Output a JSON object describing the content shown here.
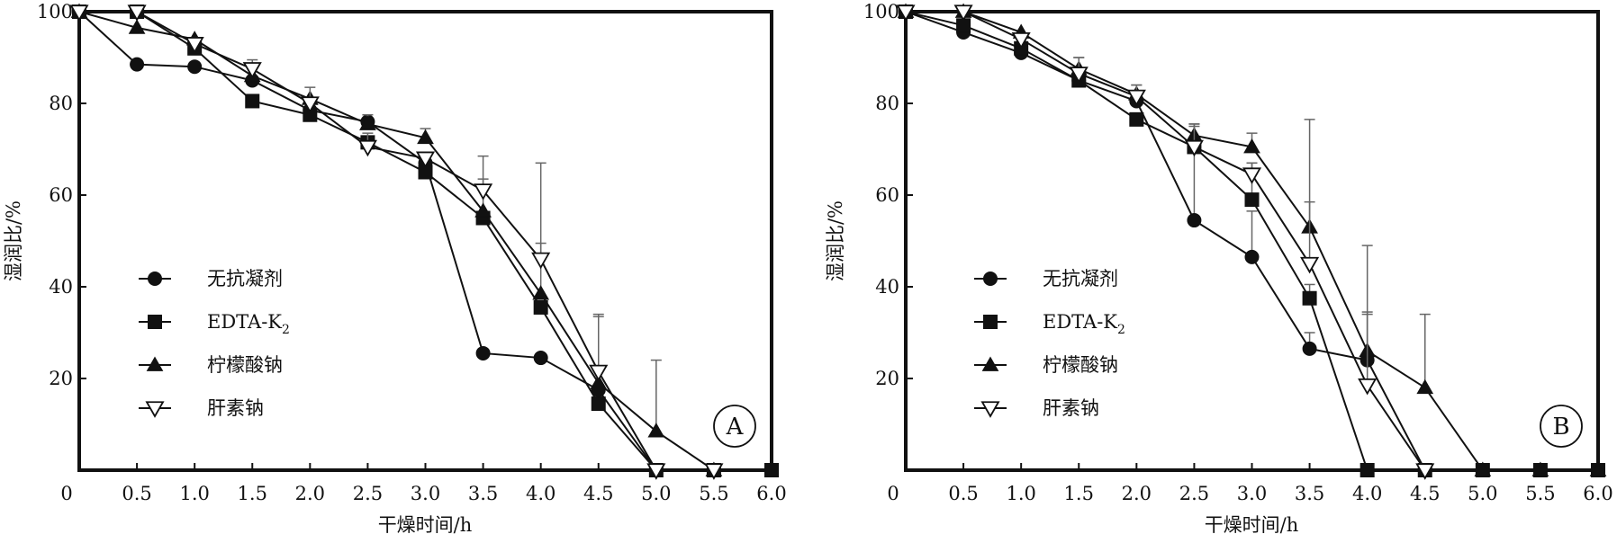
{
  "chart_data": [
    {
      "type": "line",
      "panel": "A",
      "xlabel": "干燥时间/h",
      "ylabel": "湿润比/%",
      "x_ticks": [
        "0",
        "0.5",
        "1.0",
        "1.5",
        "2.0",
        "2.5",
        "3.0",
        "3.5",
        "4.0",
        "4.5",
        "5.0",
        "5.5",
        "6.0"
      ],
      "y_ticks": [
        "100",
        "80",
        "60",
        "40",
        "20"
      ],
      "xlim": [
        0,
        6
      ],
      "ylim": [
        0,
        100
      ],
      "grid": false,
      "legend_position": "left-middle",
      "legend_labels": [
        "无抗凝剂",
        "EDTA-K",
        "柠檬酸钠",
        "肝素钠"
      ],
      "legend_subscripts": [
        "",
        "2",
        "",
        ""
      ],
      "series": [
        {
          "name": "无抗凝剂",
          "marker": "circle",
          "x": [
            0,
            0.5,
            1.0,
            1.5,
            2.0,
            2.5,
            3.0,
            3.5,
            4.0,
            4.5,
            5.0,
            5.5,
            6.0
          ],
          "y": [
            100,
            88.5,
            88,
            85,
            78.5,
            76,
            67,
            25.5,
            24.5,
            17.5,
            0,
            0,
            0
          ],
          "err": [
            0,
            0,
            0,
            0,
            0,
            0,
            0,
            0,
            0,
            0,
            0,
            0,
            0
          ]
        },
        {
          "name": "EDTA-K2",
          "marker": "square",
          "x": [
            0,
            0.5,
            1.0,
            1.5,
            2.0,
            2.5,
            3.0,
            3.5,
            4.0,
            4.5,
            5.0,
            5.5,
            6.0
          ],
          "y": [
            100,
            100,
            92,
            80.5,
            77.5,
            71.5,
            65,
            55,
            35.5,
            14.5,
            0,
            0,
            0
          ],
          "err": [
            0,
            0,
            0,
            0,
            0,
            0,
            0,
            0,
            0,
            0,
            0,
            0,
            0
          ]
        },
        {
          "name": "柠檬酸钠",
          "marker": "triangle-up",
          "x": [
            0,
            0.5,
            1.0,
            1.5,
            2.0,
            2.5,
            3.0,
            3.5,
            4.0,
            4.5,
            5.0,
            5.5
          ],
          "y": [
            100,
            96.5,
            94,
            86,
            81,
            75.5,
            72.5,
            56.5,
            38.5,
            19,
            8.5,
            0
          ],
          "err": [
            0,
            0,
            0,
            0,
            0,
            2,
            2,
            7,
            11,
            15,
            15.5,
            0
          ]
        },
        {
          "name": "肝素钠",
          "marker": "triangle-down-open",
          "x": [
            0,
            0.5,
            1.0,
            1.5,
            2.0,
            2.5,
            3.0,
            3.5,
            4.0,
            4.5,
            5.0,
            5.5
          ],
          "y": [
            100,
            100,
            93,
            87.5,
            80,
            70.5,
            68,
            61,
            46,
            21.5,
            0,
            0
          ],
          "err": [
            0,
            0,
            0,
            2,
            3.5,
            3,
            0,
            7.5,
            21,
            12,
            0,
            0
          ]
        }
      ]
    },
    {
      "type": "line",
      "panel": "B",
      "xlabel": "干燥时间/h",
      "ylabel": "湿润比/%",
      "x_ticks": [
        "0",
        "0.5",
        "1.0",
        "1.5",
        "2.0",
        "2.5",
        "3.0",
        "3.5",
        "4.0",
        "4.5",
        "5.0",
        "5.5",
        "6.0"
      ],
      "y_ticks": [
        "100",
        "80",
        "60",
        "40",
        "20"
      ],
      "xlim": [
        0,
        6
      ],
      "ylim": [
        0,
        100
      ],
      "grid": false,
      "legend_position": "left-middle",
      "legend_labels": [
        "无抗凝剂",
        "EDTA-K",
        "柠檬酸钠",
        "肝素钠"
      ],
      "legend_subscripts": [
        "",
        "2",
        "",
        ""
      ],
      "series": [
        {
          "name": "无抗凝剂",
          "marker": "circle",
          "x": [
            0,
            0.5,
            1.0,
            1.5,
            2.0,
            2.5,
            3.0,
            3.5,
            4.0,
            4.5,
            5.0,
            5.5,
            6.0
          ],
          "y": [
            100,
            95.5,
            91,
            85,
            80.5,
            54.5,
            46.5,
            26.5,
            24,
            0,
            0,
            0,
            0
          ],
          "err": [
            0,
            0,
            0,
            0,
            0,
            16,
            10,
            3.5,
            10,
            0,
            0,
            0,
            0
          ]
        },
        {
          "name": "EDTA-K2",
          "marker": "square",
          "x": [
            0,
            0.5,
            1.0,
            1.5,
            2.0,
            2.5,
            3.0,
            3.5,
            4.0,
            4.5,
            5.0,
            5.5,
            6.0
          ],
          "y": [
            100,
            97,
            92,
            85,
            76.5,
            70.5,
            59,
            37.5,
            0,
            0,
            0,
            0,
            0
          ],
          "err": [
            0,
            0,
            0,
            0,
            0,
            5,
            8,
            3,
            0,
            0,
            0,
            0,
            0
          ]
        },
        {
          "name": "柠檬酸钠",
          "marker": "triangle-up",
          "x": [
            0,
            0.5,
            1.0,
            1.5,
            2.0,
            2.5,
            3.0,
            3.5,
            4.0,
            4.5,
            5.0,
            5.5,
            6.0
          ],
          "y": [
            100,
            100,
            95.5,
            87.5,
            82,
            73,
            70.5,
            53,
            26,
            18,
            0,
            0,
            0
          ],
          "err": [
            0,
            0,
            0,
            2.5,
            2,
            2,
            3,
            5.5,
            23,
            16,
            0,
            0,
            0
          ]
        },
        {
          "name": "肝素钠",
          "marker": "triangle-down-open",
          "x": [
            0,
            0.5,
            1.0,
            1.5,
            2.0,
            2.5,
            3.0,
            3.5,
            4.0,
            4.5
          ],
          "y": [
            100,
            100,
            94,
            86.5,
            81.5,
            70.5,
            64.5,
            45,
            18.5,
            0
          ],
          "err": [
            0,
            0,
            0,
            3.5,
            2.5,
            5,
            2.5,
            31.5,
            16,
            0
          ]
        }
      ]
    }
  ]
}
